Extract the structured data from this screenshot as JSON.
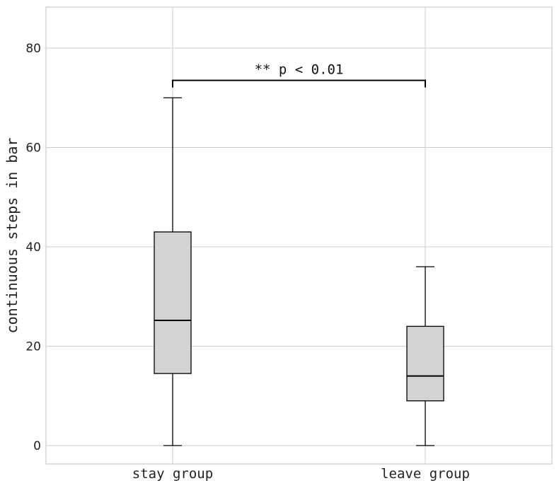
{
  "chart_data": {
    "type": "box",
    "title": "",
    "xlabel": "",
    "ylabel": "continuous steps in bar",
    "ylim": [
      -3.5,
      88
    ],
    "yticks": [
      0,
      20,
      40,
      60,
      80
    ],
    "grid": true,
    "categories": [
      "stay group",
      "leave group"
    ],
    "boxes": [
      {
        "name": "stay group",
        "whisker_low": 0,
        "q1": 14.5,
        "median": 25.2,
        "q3": 43,
        "whisker_high": 70
      },
      {
        "name": "leave group",
        "whisker_low": 0,
        "q1": 9,
        "median": 14,
        "q3": 24,
        "whisker_high": 36
      }
    ],
    "box_fill": "#d3d3d3",
    "annotation": {
      "text": "** p < 0.01",
      "y": 73.5
    }
  }
}
